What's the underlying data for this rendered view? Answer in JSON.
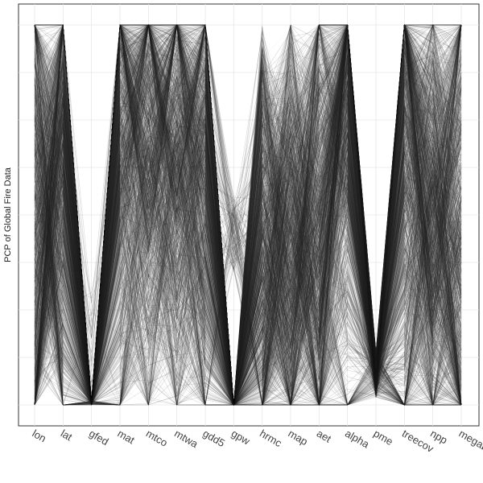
{
  "chart_data": {
    "type": "parallel-coordinates",
    "ylabel": "PCP of Global Fire Data",
    "axes": [
      "lon",
      "lat",
      "gfed",
      "mat",
      "mtco",
      "mtwa",
      "gdd5",
      "gpw",
      "hrmc",
      "map",
      "aet",
      "alpha",
      "pme",
      "treecov",
      "npp",
      "megabio"
    ],
    "ylim": [
      0,
      1
    ],
    "grid": true,
    "line_color": "#2a2a2a",
    "profiles": [
      [
        0.0,
        0.55,
        0.0,
        0.75,
        0.78,
        0.72,
        0.65,
        0.0,
        0.55,
        0.45,
        0.6,
        0.85,
        0.05,
        0.8,
        0.4,
        0.0
      ],
      [
        0.25,
        0.95,
        0.0,
        0.99,
        0.99,
        0.9,
        0.92,
        0.0,
        0.15,
        0.3,
        0.4,
        0.99,
        0.1,
        0.98,
        0.7,
        0.98
      ],
      [
        0.5,
        0.2,
        0.0,
        0.35,
        0.3,
        0.4,
        0.4,
        0.0,
        0.05,
        0.2,
        0.1,
        0.7,
        0.05,
        0.2,
        0.2,
        0.15
      ],
      [
        0.85,
        0.45,
        0.0,
        0.9,
        0.85,
        0.92,
        0.8,
        0.0,
        0.35,
        0.6,
        0.55,
        0.95,
        0.08,
        0.95,
        0.55,
        0.7
      ],
      [
        0.99,
        0.99,
        0.0,
        0.95,
        0.95,
        0.95,
        0.99,
        0.0,
        0.5,
        0.5,
        0.8,
        0.99,
        0.02,
        0.99,
        0.6,
        0.5
      ],
      [
        0.4,
        0.6,
        0.0,
        0.6,
        0.6,
        0.55,
        0.45,
        0.45,
        0.5,
        0.55,
        0.45,
        0.6,
        0.06,
        0.5,
        0.5,
        0.3
      ],
      [
        0.1,
        0.8,
        0.0,
        0.85,
        0.88,
        0.7,
        0.55,
        0.0,
        0.25,
        0.4,
        0.7,
        0.9,
        0.04,
        0.7,
        0.65,
        0.85
      ],
      [
        0.7,
        0.3,
        0.0,
        0.2,
        0.45,
        0.3,
        0.05,
        0.0,
        0.45,
        0.35,
        0.0,
        0.0,
        0.1,
        0.05,
        0.25,
        0.05
      ]
    ]
  }
}
